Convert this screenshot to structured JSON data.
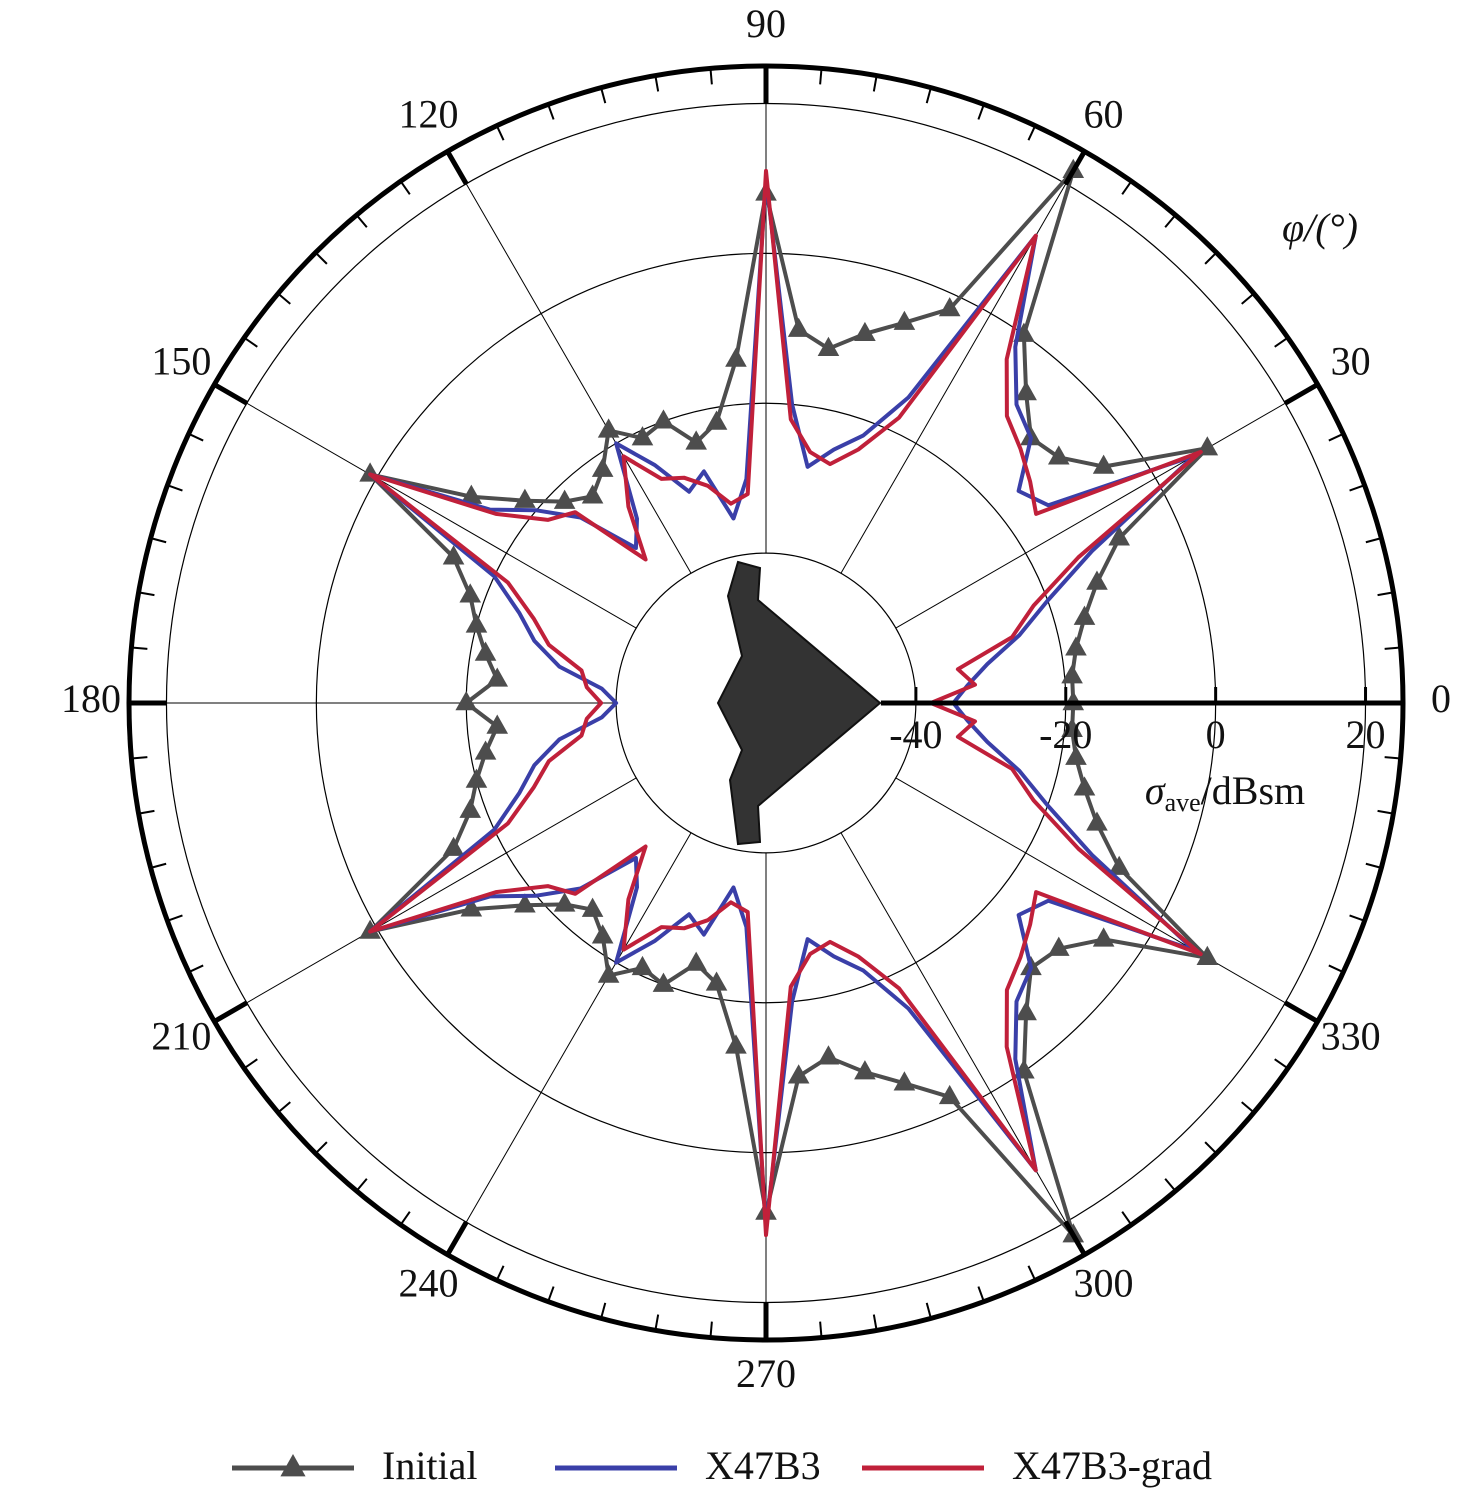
{
  "chart_data": {
    "type": "polar",
    "angular_label": "φ/(°)",
    "radial_label": {
      "symbol": "σ",
      "subscript": "ave",
      "unit": "/dBsm"
    },
    "theta": [
      0,
      5,
      10,
      15,
      20,
      25,
      30,
      35,
      40,
      45,
      50,
      55,
      60,
      65,
      70,
      75,
      80,
      85,
      90,
      95,
      100,
      105,
      110,
      115,
      120,
      125,
      130,
      135,
      140,
      145,
      150,
      155,
      160,
      165,
      170,
      175,
      180,
      185,
      190,
      195,
      200,
      205,
      210,
      215,
      220,
      225,
      230,
      235,
      240,
      245,
      250,
      255,
      260,
      265,
      270,
      275,
      280,
      285,
      290,
      295,
      300,
      305,
      310,
      315,
      320,
      325,
      330,
      335,
      340,
      345,
      350,
      355
    ],
    "thetaticks": [
      0,
      30,
      60,
      90,
      120,
      150,
      180,
      210,
      240,
      270,
      300,
      330
    ],
    "rlim": [
      -60,
      25
    ],
    "rticks": [
      -40,
      -20,
      0,
      20
    ],
    "grid": true,
    "series": [
      {
        "name": "Initial",
        "color": "#4d4d4d",
        "marker": "triangle",
        "values": [
          -19,
          -19,
          -18,
          -16,
          -13,
          -8,
          8,
          -5,
          -9,
          -10,
          -6,
          0,
          22,
          -2,
          -6,
          -9,
          -12,
          -10,
          8,
          -14,
          -22,
          -24,
          -20,
          -21,
          -18,
          -22,
          -24,
          -22,
          -18,
          -12,
          1,
          -14,
          -18,
          -20,
          -22,
          -24,
          -20,
          -24,
          -22,
          -20,
          -18,
          -14,
          1,
          -12,
          -18,
          -22,
          -24,
          -22,
          -18,
          -21,
          -20,
          -24,
          -22,
          -14,
          8,
          -10,
          -12,
          -9,
          -6,
          -2,
          22,
          0,
          -6,
          -10,
          -9,
          -5,
          8,
          -8,
          -13,
          -16,
          -18,
          -19
        ]
      },
      {
        "name": "X47B3",
        "color": "#3a3fa8",
        "values": [
          -35,
          -33,
          -30,
          -25,
          -20,
          -12,
          6,
          -14,
          -16,
          -10,
          -8,
          -2,
          12,
          -15,
          -22,
          -25,
          -28,
          -20,
          10,
          -30,
          -35,
          -28,
          -30,
          -25,
          -20,
          -30,
          -33,
          -25,
          -20,
          -15,
          1,
          -20,
          -25,
          -28,
          -32,
          -38,
          -40,
          -38,
          -32,
          -28,
          -25,
          -20,
          1,
          -15,
          -20,
          -25,
          -33,
          -30,
          -20,
          -25,
          -30,
          -28,
          -35,
          -30,
          10,
          -20,
          -28,
          -25,
          -22,
          -15,
          12,
          -2,
          -8,
          -10,
          -16,
          -14,
          6,
          -12,
          -20,
          -25,
          -30,
          -33
        ]
      },
      {
        "name": "X47B3-grad",
        "color": "#c0203a",
        "values": [
          -38,
          -32,
          -34,
          -26,
          -22,
          -14,
          7,
          -16,
          -14,
          -12,
          -10,
          -4,
          12,
          -18,
          -24,
          -27,
          -26,
          -22,
          11,
          -32,
          -33,
          -30,
          -28,
          -27,
          -22,
          -28,
          -35,
          -24,
          -22,
          -16,
          1,
          -22,
          -27,
          -30,
          -35,
          -36,
          -38,
          -36,
          -35,
          -30,
          -27,
          -22,
          1,
          -16,
          -22,
          -24,
          -35,
          -28,
          -22,
          -27,
          -28,
          -30,
          -33,
          -32,
          11,
          -22,
          -26,
          -27,
          -24,
          -18,
          12,
          -4,
          -10,
          -12,
          -14,
          -16,
          7,
          -14,
          -22,
          -26,
          -34,
          -32
        ]
      }
    ]
  }
}
